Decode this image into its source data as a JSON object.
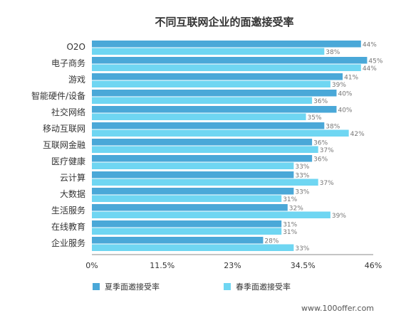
{
  "chart_data": {
    "type": "bar",
    "orientation": "horizontal",
    "title": "不同互联网企业的面邀接受率",
    "categories": [
      "O2O",
      "电子商务",
      "游戏",
      "智能硬件/设备",
      "社交网络",
      "移动互联网",
      "互联网金融",
      "医疗健康",
      "云计算",
      "大数据",
      "生活服务",
      "在线教育",
      "企业服务"
    ],
    "series": [
      {
        "name": "夏季面邀接受率",
        "color": "#4aa8d8",
        "values": [
          44,
          45,
          41,
          40,
          40,
          38,
          36,
          36,
          33,
          33,
          32,
          31,
          28
        ],
        "labels": [
          "44%",
          "45%",
          "41%",
          "40%",
          "40%",
          "38%",
          "36%",
          "36%",
          "33%",
          "33%",
          "32%",
          "31%",
          "28%"
        ]
      },
      {
        "name": "春季面邀接受率",
        "color": "#6fd6f2",
        "values": [
          38,
          44,
          39,
          36,
          35,
          42,
          37,
          33,
          37,
          31,
          39,
          31,
          33
        ],
        "labels": [
          "38%",
          "44%",
          "39%",
          "36%",
          "35%",
          "42%",
          "37%",
          "33%",
          "37%",
          "31%",
          "39%",
          "31%",
          "33%"
        ]
      }
    ],
    "xlim": [
      0,
      46
    ],
    "xticks": [
      "0%",
      "11.5%",
      "23%",
      "34.5%",
      "46%"
    ],
    "xtick_values": [
      0,
      11.5,
      23,
      34.5,
      46
    ],
    "grid": false,
    "legend_position": "bottom"
  },
  "watermark": "www.100offer.com"
}
